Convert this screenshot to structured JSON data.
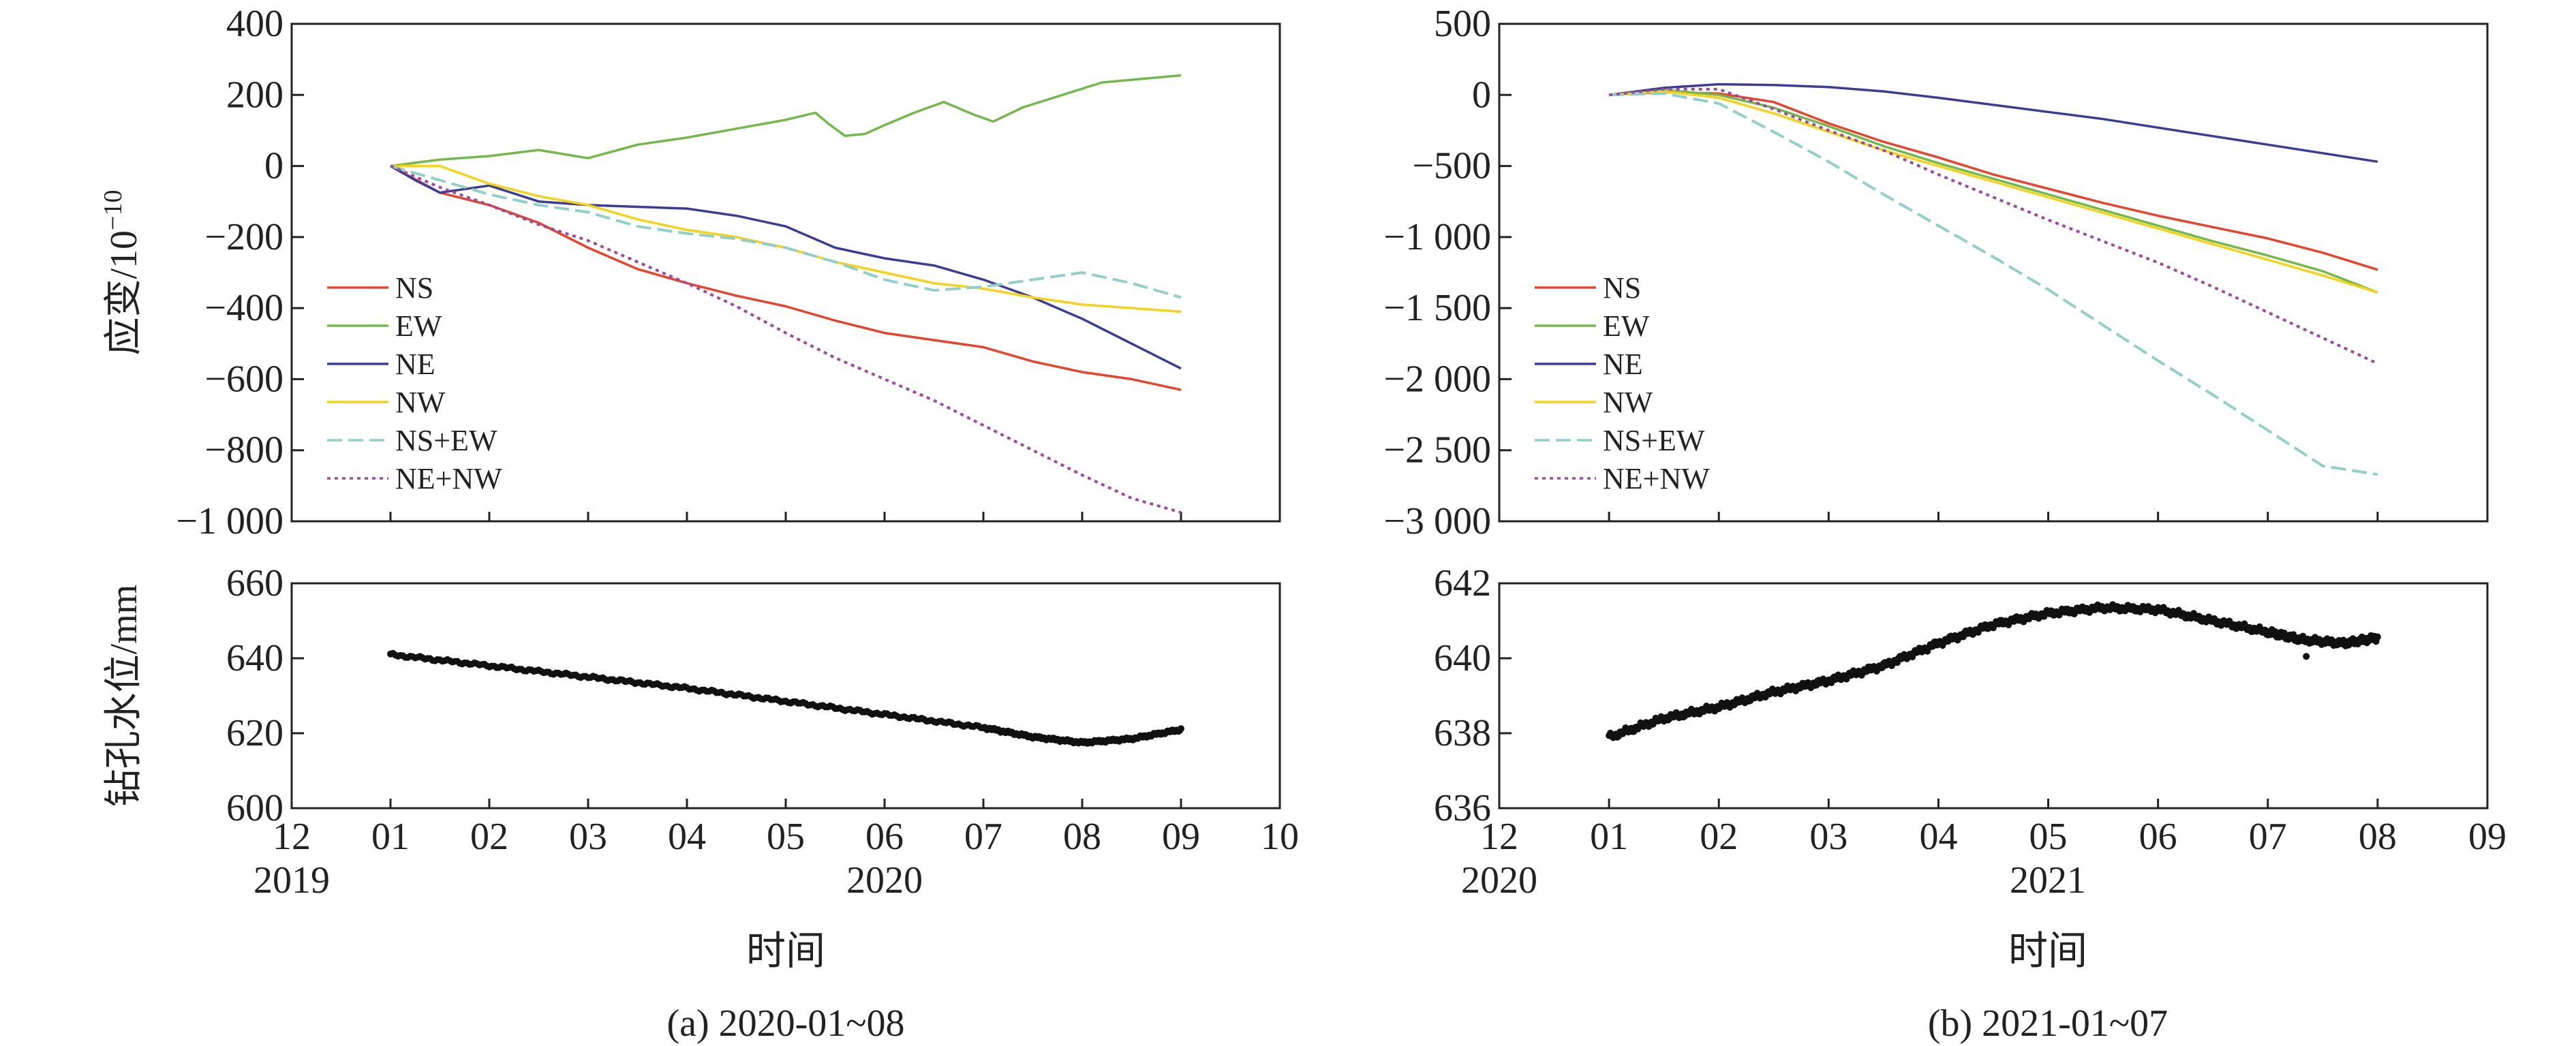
{
  "chart_data": [
    {
      "id": "a-strain",
      "type": "line",
      "panel": "a",
      "ylabel_main": "应变/10",
      "ylabel_exp": "−10",
      "ylim": [
        -1000,
        400
      ],
      "yticks": [
        400,
        200,
        0,
        -200,
        -400,
        -600,
        -800,
        -1000
      ],
      "ytick_labels": [
        "400",
        "200",
        "0",
        "−200",
        "−400",
        "−600",
        "−800",
        "−1 000"
      ],
      "xlim": [
        0,
        10
      ],
      "start_month_index": 1,
      "months": 8,
      "legend_position": "left-middle",
      "series": [
        {
          "name": "NS",
          "style": "solid",
          "color": "#e8432c",
          "points": [
            [
              0,
              0
            ],
            [
              0.5,
              -75
            ],
            [
              1,
              -110
            ],
            [
              1.5,
              -160
            ],
            [
              2,
              -230
            ],
            [
              2.5,
              -290
            ],
            [
              3,
              -330
            ],
            [
              3.5,
              -365
            ],
            [
              4,
              -395
            ],
            [
              4.5,
              -435
            ],
            [
              5,
              -470
            ],
            [
              5.5,
              -490
            ],
            [
              6,
              -510
            ],
            [
              6.5,
              -550
            ],
            [
              7,
              -580
            ],
            [
              7.5,
              -600
            ],
            [
              8,
              -630
            ]
          ]
        },
        {
          "name": "EW",
          "style": "solid",
          "color": "#74b84c",
          "points": [
            [
              0,
              0
            ],
            [
              0.5,
              18
            ],
            [
              1,
              28
            ],
            [
              1.5,
              45
            ],
            [
              2,
              22
            ],
            [
              2.5,
              60
            ],
            [
              3,
              80
            ],
            [
              3.5,
              105
            ],
            [
              4,
              130
            ],
            [
              4.3,
              150
            ],
            [
              4.45,
              115
            ],
            [
              4.6,
              85
            ],
            [
              4.8,
              90
            ],
            [
              5,
              115
            ],
            [
              5.3,
              150
            ],
            [
              5.6,
              180
            ],
            [
              5.9,
              145
            ],
            [
              6.1,
              125
            ],
            [
              6.4,
              165
            ],
            [
              6.8,
              200
            ],
            [
              7.2,
              235
            ],
            [
              7.6,
              245
            ],
            [
              8,
              255
            ]
          ]
        },
        {
          "name": "NE",
          "style": "solid",
          "color": "#3b3c96",
          "points": [
            [
              0,
              0
            ],
            [
              0.25,
              -40
            ],
            [
              0.5,
              -75
            ],
            [
              1,
              -55
            ],
            [
              1.5,
              -100
            ],
            [
              2,
              -110
            ],
            [
              2.5,
              -115
            ],
            [
              3,
              -120
            ],
            [
              3.5,
              -140
            ],
            [
              4,
              -170
            ],
            [
              4.5,
              -230
            ],
            [
              5,
              -260
            ],
            [
              5.5,
              -280
            ],
            [
              6,
              -320
            ],
            [
              6.5,
              -370
            ],
            [
              7,
              -430
            ],
            [
              7.5,
              -500
            ],
            [
              8,
              -570
            ]
          ]
        },
        {
          "name": "NW",
          "style": "solid",
          "color": "#f5d21a",
          "points": [
            [
              0,
              0
            ],
            [
              0.5,
              0
            ],
            [
              1,
              -50
            ],
            [
              1.5,
              -85
            ],
            [
              2,
              -110
            ],
            [
              2.5,
              -150
            ],
            [
              3,
              -180
            ],
            [
              3.5,
              -200
            ],
            [
              4,
              -230
            ],
            [
              4.5,
              -270
            ],
            [
              5,
              -300
            ],
            [
              5.5,
              -330
            ],
            [
              6,
              -345
            ],
            [
              6.5,
              -370
            ],
            [
              7,
              -390
            ],
            [
              7.5,
              -400
            ],
            [
              8,
              -410
            ]
          ]
        },
        {
          "name": "NS+EW",
          "style": "dashed",
          "color": "#93cfc9",
          "points": [
            [
              0,
              0
            ],
            [
              0.5,
              -40
            ],
            [
              1,
              -80
            ],
            [
              1.5,
              -110
            ],
            [
              2,
              -130
            ],
            [
              2.5,
              -170
            ],
            [
              3,
              -190
            ],
            [
              3.5,
              -205
            ],
            [
              4,
              -230
            ],
            [
              4.5,
              -270
            ],
            [
              5,
              -320
            ],
            [
              5.5,
              -350
            ],
            [
              6,
              -340
            ],
            [
              6.5,
              -320
            ],
            [
              7,
              -300
            ],
            [
              7.5,
              -330
            ],
            [
              8,
              -370
            ]
          ]
        },
        {
          "name": "NE+NW",
          "style": "dotted",
          "color": "#9c4a9c",
          "points": [
            [
              0,
              0
            ],
            [
              0.5,
              -60
            ],
            [
              1,
              -110
            ],
            [
              1.5,
              -165
            ],
            [
              2,
              -210
            ],
            [
              2.5,
              -270
            ],
            [
              3,
              -330
            ],
            [
              3.5,
              -395
            ],
            [
              4,
              -470
            ],
            [
              4.5,
              -540
            ],
            [
              5,
              -600
            ],
            [
              5.5,
              -660
            ],
            [
              6,
              -730
            ],
            [
              6.5,
              -800
            ],
            [
              7,
              -870
            ],
            [
              7.5,
              -935
            ],
            [
              8,
              -975
            ]
          ]
        }
      ]
    },
    {
      "id": "a-water",
      "type": "scatter",
      "panel": "a",
      "ylabel": "钻孔水位/mm",
      "ylim": [
        600,
        660
      ],
      "yticks": [
        660,
        640,
        620,
        600
      ],
      "ytick_labels": [
        "660",
        "640",
        "620",
        "600"
      ],
      "xlim": [
        0,
        10
      ],
      "xtick_labels": [
        "12",
        "01",
        "02",
        "03",
        "04",
        "05",
        "06",
        "07",
        "08",
        "09",
        "10"
      ],
      "year_labels": [
        "2019",
        "2020"
      ],
      "xlabel": "时间",
      "caption": "(a) 2020-01~08",
      "series": [
        {
          "name": "钻孔水位",
          "color": "#111111",
          "points": [
            [
              1,
              641
            ],
            [
              2,
              638
            ],
            [
              3,
              635
            ],
            [
              4,
              632
            ],
            [
              5,
              628.5
            ],
            [
              6,
              625
            ],
            [
              7,
              621.5
            ],
            [
              7.5,
              619
            ],
            [
              8,
              617.5
            ],
            [
              8.5,
              618.5
            ],
            [
              9,
              621
            ]
          ]
        }
      ]
    },
    {
      "id": "b-strain",
      "type": "line",
      "panel": "b",
      "ylabel_main": "",
      "ylim": [
        -3000,
        500
      ],
      "yticks": [
        500,
        0,
        -500,
        -1000,
        -1500,
        -2000,
        -2500,
        -3000
      ],
      "ytick_labels": [
        "500",
        "0",
        "−500",
        "−1 000",
        "−1 500",
        "−2 000",
        "−2 500",
        "−3 000"
      ],
      "xlim": [
        0,
        9
      ],
      "start_month_index": 1,
      "months": 7,
      "legend_position": "left-middle",
      "series": [
        {
          "name": "NS",
          "style": "solid",
          "color": "#e8432c",
          "points": [
            [
              0,
              0
            ],
            [
              0.5,
              20
            ],
            [
              1,
              10
            ],
            [
              1.5,
              -50
            ],
            [
              2,
              -200
            ],
            [
              2.5,
              -330
            ],
            [
              3,
              -440
            ],
            [
              3.5,
              -560
            ],
            [
              4,
              -660
            ],
            [
              4.5,
              -760
            ],
            [
              5,
              -850
            ],
            [
              5.5,
              -930
            ],
            [
              6,
              -1010
            ],
            [
              6.5,
              -1110
            ],
            [
              7,
              -1230
            ]
          ]
        },
        {
          "name": "EW",
          "style": "solid",
          "color": "#74b84c",
          "points": [
            [
              0,
              0
            ],
            [
              0.5,
              35
            ],
            [
              1,
              0
            ],
            [
              1.5,
              -90
            ],
            [
              2,
              -220
            ],
            [
              2.5,
              -360
            ],
            [
              3,
              -480
            ],
            [
              3.5,
              -590
            ],
            [
              4,
              -700
            ],
            [
              4.5,
              -810
            ],
            [
              5,
              -920
            ],
            [
              5.5,
              -1030
            ],
            [
              6,
              -1130
            ],
            [
              6.5,
              -1240
            ],
            [
              7,
              -1390
            ]
          ]
        },
        {
          "name": "NE",
          "style": "solid",
          "color": "#3b3c96",
          "points": [
            [
              0,
              0
            ],
            [
              0.5,
              50
            ],
            [
              1,
              75
            ],
            [
              1.5,
              70
            ],
            [
              2,
              55
            ],
            [
              2.5,
              25
            ],
            [
              3,
              -20
            ],
            [
              3.5,
              -70
            ],
            [
              4,
              -120
            ],
            [
              4.5,
              -170
            ],
            [
              5,
              -230
            ],
            [
              5.5,
              -290
            ],
            [
              6,
              -350
            ],
            [
              6.5,
              -410
            ],
            [
              7,
              -470
            ]
          ]
        },
        {
          "name": "NW",
          "style": "solid",
          "color": "#f5d21a",
          "points": [
            [
              0,
              0
            ],
            [
              0.5,
              25
            ],
            [
              1,
              -20
            ],
            [
              1.5,
              -130
            ],
            [
              2,
              -260
            ],
            [
              2.5,
              -390
            ],
            [
              3,
              -500
            ],
            [
              3.5,
              -610
            ],
            [
              4,
              -720
            ],
            [
              4.5,
              -830
            ],
            [
              5,
              -940
            ],
            [
              5.5,
              -1050
            ],
            [
              6,
              -1160
            ],
            [
              6.5,
              -1270
            ],
            [
              7,
              -1390
            ]
          ]
        },
        {
          "name": "NS+EW",
          "style": "dashed",
          "color": "#93cfc9",
          "points": [
            [
              0,
              0
            ],
            [
              0.5,
              10
            ],
            [
              1,
              -60
            ],
            [
              1.5,
              -260
            ],
            [
              2,
              -470
            ],
            [
              2.5,
              -700
            ],
            [
              3,
              -920
            ],
            [
              3.5,
              -1140
            ],
            [
              4,
              -1370
            ],
            [
              4.5,
              -1620
            ],
            [
              5,
              -1870
            ],
            [
              5.5,
              -2110
            ],
            [
              6,
              -2360
            ],
            [
              6.5,
              -2610
            ],
            [
              7,
              -2670
            ]
          ]
        },
        {
          "name": "NE+NW",
          "style": "dotted",
          "color": "#9c4a9c",
          "points": [
            [
              0,
              0
            ],
            [
              0.5,
              40
            ],
            [
              1,
              40
            ],
            [
              1.5,
              -100
            ],
            [
              2,
              -250
            ],
            [
              2.5,
              -390
            ],
            [
              3,
              -560
            ],
            [
              3.5,
              -720
            ],
            [
              4,
              -880
            ],
            [
              4.5,
              -1030
            ],
            [
              5,
              -1180
            ],
            [
              5.5,
              -1350
            ],
            [
              6,
              -1530
            ],
            [
              6.5,
              -1710
            ],
            [
              7,
              -1890
            ]
          ]
        }
      ]
    },
    {
      "id": "b-water",
      "type": "scatter",
      "panel": "b",
      "ylim": [
        636,
        642
      ],
      "yticks": [
        642,
        640,
        638,
        636
      ],
      "ytick_labels": [
        "642",
        "640",
        "638",
        "636"
      ],
      "xlim": [
        0,
        9
      ],
      "xtick_labels": [
        "12",
        "01",
        "02",
        "03",
        "04",
        "05",
        "06",
        "07",
        "08",
        "09"
      ],
      "year_labels": [
        "2020",
        "2021"
      ],
      "xlabel": "时间",
      "caption": "(b) 2021-01~07",
      "series": [
        {
          "name": "钻孔水位",
          "color": "#111111",
          "points": [
            [
              1,
              637.9
            ],
            [
              1.5,
              638.4
            ],
            [
              2,
              638.7
            ],
            [
              2.5,
              639.1
            ],
            [
              3,
              639.4
            ],
            [
              3.5,
              639.8
            ],
            [
              4,
              640.4
            ],
            [
              4.5,
              640.9
            ],
            [
              5,
              641.2
            ],
            [
              5.5,
              641.35
            ],
            [
              6,
              641.3
            ],
            [
              6.5,
              641.0
            ],
            [
              7,
              640.7
            ],
            [
              7.3,
              640.5
            ],
            [
              7.7,
              640.4
            ],
            [
              8,
              640.55
            ]
          ]
        }
      ]
    }
  ]
}
